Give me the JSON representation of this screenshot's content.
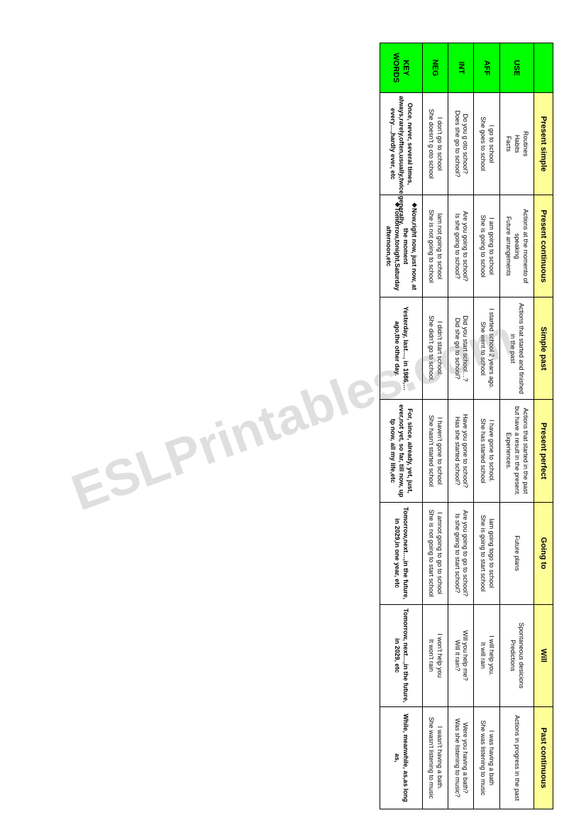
{
  "watermark": "ESLPrintables.com",
  "columns": [
    "Present simple",
    "Present continuous",
    "Simple past",
    "Present perfect",
    "Going to",
    "Will",
    "Past continuous"
  ],
  "rows": {
    "use": {
      "label": "USE",
      "cells": [
        "Routines\nHabits\nFacts",
        "Actions at the momento of speaking\nFuture arrangements",
        "Actions that started and finished in the past",
        "Actions that started in the past but have a result in the present. Experiences.",
        "Future plans",
        "Spontaneous desicions\nPredictions",
        "Actions in progress in the past"
      ]
    },
    "aff": {
      "label": "AFF",
      "cells": [
        "I go to school\nShe goes to school",
        "I am going to school\nShe is going to school",
        "I started school 2 years ago.\nShe went to school",
        "I have gone to school.\nShe has started school",
        "Iam going togo to school\nShe is going to start school",
        "I will help you.\nIt will rain",
        "I was having a bath\nShe was listening to music"
      ]
    },
    "int": {
      "label": "INT",
      "cells": [
        "Do you g oto school?\nDoes she go to school?",
        "Are you going to school?\nIs she going to school?",
        "Did you start school…?\nDid she go to school?",
        "Have you gone  to school?\nHas she started school?",
        "Are you going to go to school?\nIs she going to start school?",
        "Will you help me?\nWill it rain?",
        "Were you having a bath?\nWas she listening to music?"
      ]
    },
    "neg": {
      "label": "NEG",
      "cells": [
        "I don't go to school\nShe doesn't g oto school",
        "Iam not going to school\nShe is not going to school",
        "I didn't start school.\nShe didn't go to school.",
        "I haven't gone to school\nShe hasn't started school",
        "I amnot going to go to school\nShe is not going to start school",
        "I won't help you\nIt won't rain",
        "I wasn't having a bath.\nShe wasn't listening to music"
      ]
    },
    "keywords": {
      "label": "KEY WORDS",
      "cells": [
        "Once, never, several times, always,rarely,often,usually,twice,generally, every…,hardly ever, etc",
        "❖Now,right now, just now, at the moment\n❖Tomorrow,tonight,Saturday afternoon,etc",
        "Yesterday, last…, in 1986,…ago,the other day.",
        "For, since, already, yet, just, ever,not yet, so far, till now, up tp now, all my life,etc",
        "Tomorrow,next…,in the future, in 2029,in one year, etc",
        "Tomorrow, next…,in the future, in 2029, etc",
        "While, meanwhile, as,as long as,"
      ]
    }
  }
}
